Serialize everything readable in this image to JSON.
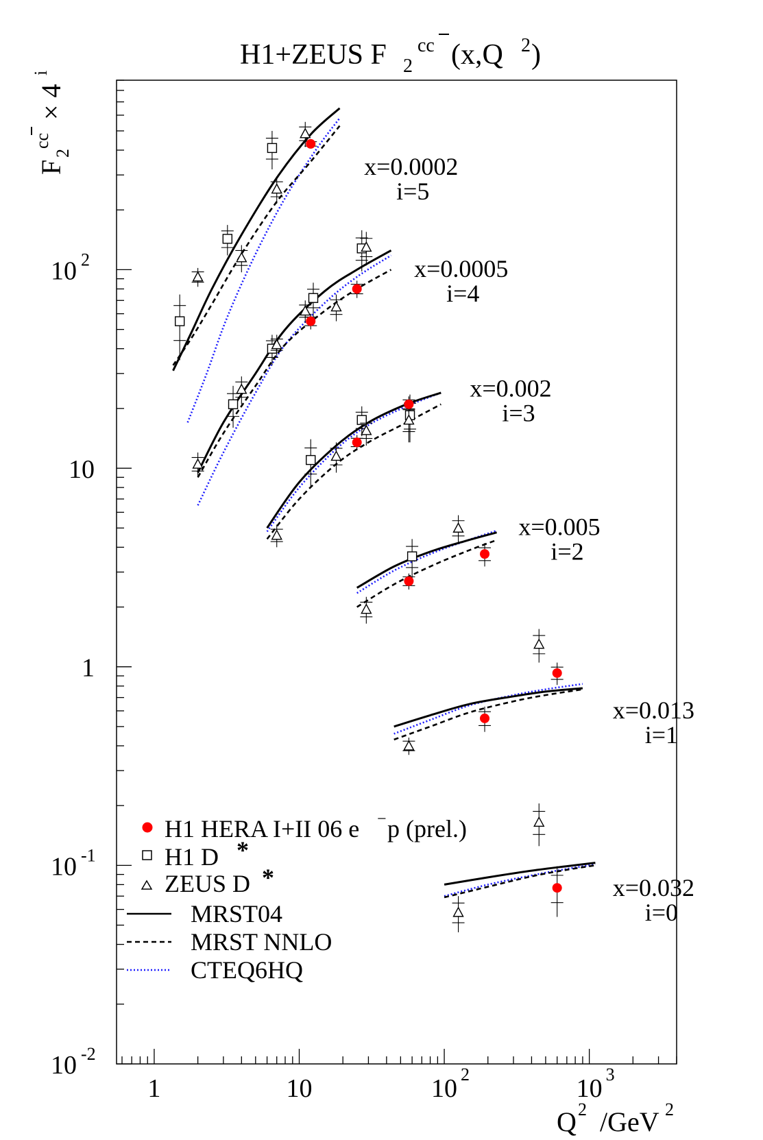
{
  "chart_data": {
    "type": "scatter",
    "title": {
      "main": "H1+ZEUS F",
      "sub": "2",
      "sup": "cc",
      "tail": "(x,Q",
      "tail_sup": "2",
      "end": ")"
    },
    "ylabel": {
      "main": "F",
      "sub": "2",
      "sup": "cc",
      "times": "× 4",
      "sup2": "i"
    },
    "xlabel": {
      "main": "Q",
      "sup": "2",
      "unit": "/GeV",
      "unit_sup": "2"
    },
    "xscale": "log",
    "yscale": "log",
    "xlim": [
      0.55,
      4000
    ],
    "ylim": [
      0.01,
      900
    ],
    "colors": {
      "h1_points": "#ff0000",
      "cteq": "#1a1aff",
      "lines": "#000000"
    },
    "x_ticks": [
      {
        "v": 1,
        "label": "1"
      },
      {
        "v": 10,
        "label": "10"
      },
      {
        "v": 100,
        "base": "10",
        "exp": "2"
      },
      {
        "v": 1000,
        "base": "10",
        "exp": "3"
      }
    ],
    "y_ticks": [
      {
        "v": 0.01,
        "base": "10",
        "exp": "-2"
      },
      {
        "v": 0.1,
        "base": "10",
        "exp": "-1"
      },
      {
        "v": 1,
        "label": "1"
      },
      {
        "v": 10,
        "label": "10"
      },
      {
        "v": 100,
        "base": "10",
        "exp": "2"
      }
    ],
    "bins": [
      {
        "x_label": "x=0.0002",
        "i_label": "i=5",
        "label_pos": [
          28,
          300
        ],
        "mrst04": [
          [
            1.35,
            31
          ],
          [
            1.8,
            48
          ],
          [
            2.5,
            80
          ],
          [
            4,
            150
          ],
          [
            7,
            290
          ],
          [
            12,
            480
          ],
          [
            19,
            650
          ]
        ],
        "mrstnnlo": [
          [
            1.35,
            33
          ],
          [
            1.8,
            45
          ],
          [
            2.5,
            67
          ],
          [
            4,
            120
          ],
          [
            7,
            220
          ],
          [
            12,
            350
          ],
          [
            19,
            530
          ]
        ],
        "cteq": [
          [
            1.7,
            17
          ],
          [
            2.3,
            30
          ],
          [
            3.2,
            58
          ],
          [
            5,
            120
          ],
          [
            8,
            230
          ],
          [
            13,
            400
          ],
          [
            19,
            580
          ]
        ],
        "h1": [
          {
            "q": 12,
            "v": 430,
            "e": 20
          }
        ],
        "h1d": [
          {
            "q": 1.5,
            "v": 55,
            "e": 20
          },
          {
            "q": 3.2,
            "v": 143,
            "e": 25
          },
          {
            "q": 6.5,
            "v": 410,
            "e": 90
          }
        ],
        "zeus": [
          {
            "q": 2.0,
            "v": 92,
            "e": 10
          },
          {
            "q": 4.0,
            "v": 115,
            "e": 18
          },
          {
            "q": 7.0,
            "v": 255,
            "e": 40
          },
          {
            "q": 11,
            "v": 485,
            "e": 70
          }
        ]
      },
      {
        "x_label": "x=0.0005",
        "i_label": "i=4",
        "label_pos": [
          62,
          92
        ],
        "mrst04": [
          [
            2.0,
            9.5
          ],
          [
            3.0,
            17
          ],
          [
            5,
            30
          ],
          [
            8,
            50
          ],
          [
            15,
            78
          ],
          [
            25,
            100
          ],
          [
            43,
            125
          ]
        ],
        "mrstnnlo": [
          [
            2.0,
            9.0
          ],
          [
            3.0,
            15
          ],
          [
            5,
            26
          ],
          [
            8,
            42
          ],
          [
            15,
            62
          ],
          [
            25,
            80
          ],
          [
            43,
            100
          ]
        ],
        "cteq": [
          [
            2.0,
            6.5
          ],
          [
            3.0,
            12
          ],
          [
            5,
            24
          ],
          [
            8,
            42
          ],
          [
            15,
            68
          ],
          [
            25,
            92
          ],
          [
            43,
            118
          ]
        ],
        "h1": [
          {
            "q": 12,
            "v": 55,
            "e": 5
          },
          {
            "q": 25,
            "v": 80,
            "e": 8
          }
        ],
        "h1d": [
          {
            "q": 3.5,
            "v": 21,
            "e": 5
          },
          {
            "q": 6.5,
            "v": 40,
            "e": 7
          },
          {
            "q": 12.5,
            "v": 72,
            "e": 14
          },
          {
            "q": 27,
            "v": 128,
            "e": 30
          }
        ],
        "zeus": [
          {
            "q": 2.0,
            "v": 10.5,
            "e": 1.5
          },
          {
            "q": 4.0,
            "v": 25,
            "e": 4
          },
          {
            "q": 7.0,
            "v": 42,
            "e": 5
          },
          {
            "q": 11,
            "v": 62,
            "e": 8
          },
          {
            "q": 18,
            "v": 65,
            "e": 10
          },
          {
            "q": 29,
            "v": 130,
            "e": 25
          }
        ]
      },
      {
        "x_label": "x=0.002",
        "i_label": "i=3",
        "label_pos": [
          150,
          23
        ],
        "mrst04": [
          [
            6,
            5.0
          ],
          [
            10,
            8.5
          ],
          [
            18,
            13
          ],
          [
            30,
            17
          ],
          [
            55,
            21
          ],
          [
            95,
            24
          ]
        ],
        "mrstnnlo": [
          [
            6,
            4.4
          ],
          [
            10,
            7.0
          ],
          [
            18,
            10.5
          ],
          [
            30,
            13.5
          ],
          [
            55,
            17
          ],
          [
            95,
            21
          ]
        ],
        "cteq": [
          [
            6,
            4.8
          ],
          [
            10,
            8.0
          ],
          [
            18,
            12.5
          ],
          [
            30,
            16.5
          ],
          [
            55,
            20.5
          ],
          [
            95,
            24
          ]
        ],
        "h1": [
          {
            "q": 25,
            "v": 13.5,
            "e": 1.2
          },
          {
            "q": 57,
            "v": 21,
            "e": 2
          }
        ],
        "h1d": [
          {
            "q": 12,
            "v": 11,
            "e": 3
          },
          {
            "q": 27,
            "v": 17.5,
            "e": 3
          },
          {
            "q": 58,
            "v": 18.5,
            "e": 5
          }
        ],
        "zeus": [
          {
            "q": 7.0,
            "v": 4.6,
            "e": 0.6
          },
          {
            "q": 18,
            "v": 11.5,
            "e": 2
          },
          {
            "q": 29,
            "v": 15.5,
            "e": 2.5
          },
          {
            "q": 57,
            "v": 17.5,
            "e": 4
          }
        ]
      },
      {
        "x_label": "x=0.005",
        "i_label": "i=2",
        "label_pos": [
          325,
          4.6
        ],
        "mrst04": [
          [
            25,
            2.5
          ],
          [
            45,
            3.2
          ],
          [
            80,
            3.8
          ],
          [
            140,
            4.3
          ],
          [
            230,
            4.75
          ]
        ],
        "mrstnnlo": [
          [
            25,
            2.0
          ],
          [
            45,
            2.6
          ],
          [
            80,
            3.2
          ],
          [
            140,
            3.8
          ],
          [
            230,
            4.35
          ]
        ],
        "cteq": [
          [
            25,
            2.35
          ],
          [
            45,
            3.05
          ],
          [
            80,
            3.7
          ],
          [
            140,
            4.3
          ],
          [
            230,
            4.85
          ]
        ],
        "h1": [
          {
            "q": 57,
            "v": 2.7,
            "e": 0.25
          },
          {
            "q": 190,
            "v": 3.7,
            "e": 0.5
          }
        ],
        "h1d": [
          {
            "q": 60,
            "v": 3.6,
            "e": 0.8
          }
        ],
        "zeus": [
          {
            "q": 29,
            "v": 1.95,
            "e": 0.3
          },
          {
            "q": 125,
            "v": 5.0,
            "e": 0.8
          }
        ]
      },
      {
        "x_label": "x=0.013",
        "i_label": "i=1",
        "label_pos": [
          1450,
          0.55
        ],
        "mrst04": [
          [
            45,
            0.5
          ],
          [
            80,
            0.57
          ],
          [
            150,
            0.65
          ],
          [
            300,
            0.71
          ],
          [
            500,
            0.75
          ],
          [
            900,
            0.78
          ]
        ],
        "mrstnnlo": [
          [
            45,
            0.43
          ],
          [
            80,
            0.5
          ],
          [
            150,
            0.59
          ],
          [
            300,
            0.67
          ],
          [
            500,
            0.72
          ],
          [
            900,
            0.77
          ]
        ],
        "cteq": [
          [
            45,
            0.46
          ],
          [
            80,
            0.54
          ],
          [
            150,
            0.64
          ],
          [
            300,
            0.72
          ],
          [
            500,
            0.77
          ],
          [
            900,
            0.82
          ]
        ],
        "h1": [
          {
            "q": 190,
            "v": 0.55,
            "e": 0.08
          },
          {
            "q": 600,
            "v": 0.93,
            "e": 0.12
          }
        ],
        "h1d": [],
        "zeus": [
          {
            "q": 57,
            "v": 0.4,
            "e": 0.04
          },
          {
            "q": 450,
            "v": 1.3,
            "e": 0.25
          }
        ]
      },
      {
        "x_label": "x=0.032",
        "i_label": "i=0",
        "label_pos": [
          1450,
          0.07
        ],
        "mrst04": [
          [
            100,
            0.08
          ],
          [
            200,
            0.087
          ],
          [
            400,
            0.094
          ],
          [
            700,
            0.099
          ],
          [
            1100,
            0.103
          ]
        ],
        "mrstnnlo": [
          [
            100,
            0.069
          ],
          [
            200,
            0.078
          ],
          [
            400,
            0.088
          ],
          [
            700,
            0.095
          ],
          [
            1100,
            0.1
          ]
        ],
        "cteq": [
          [
            100,
            0.07
          ],
          [
            200,
            0.08
          ],
          [
            400,
            0.089
          ],
          [
            700,
            0.096
          ],
          [
            1100,
            0.101
          ]
        ],
        "h1": [
          {
            "q": 600,
            "v": 0.077,
            "e": 0.022
          }
        ],
        "h1d": [],
        "zeus": [
          {
            "q": 125,
            "v": 0.058,
            "e": 0.012
          },
          {
            "q": 450,
            "v": 0.165,
            "e": 0.04
          }
        ]
      }
    ],
    "legend": {
      "h1": {
        "label": "H1 HERA I+II 06 e",
        "sup": "−",
        "tail": "p (prel.)"
      },
      "h1d": {
        "label": "H1 D",
        "sup": "*"
      },
      "zeus": {
        "label": "ZEUS D",
        "sup": "*"
      },
      "mrst04": "MRST04",
      "mrstnnlo": "MRST NNLO",
      "cteq": "CTEQ6HQ",
      "placement": "bottom-left"
    }
  }
}
